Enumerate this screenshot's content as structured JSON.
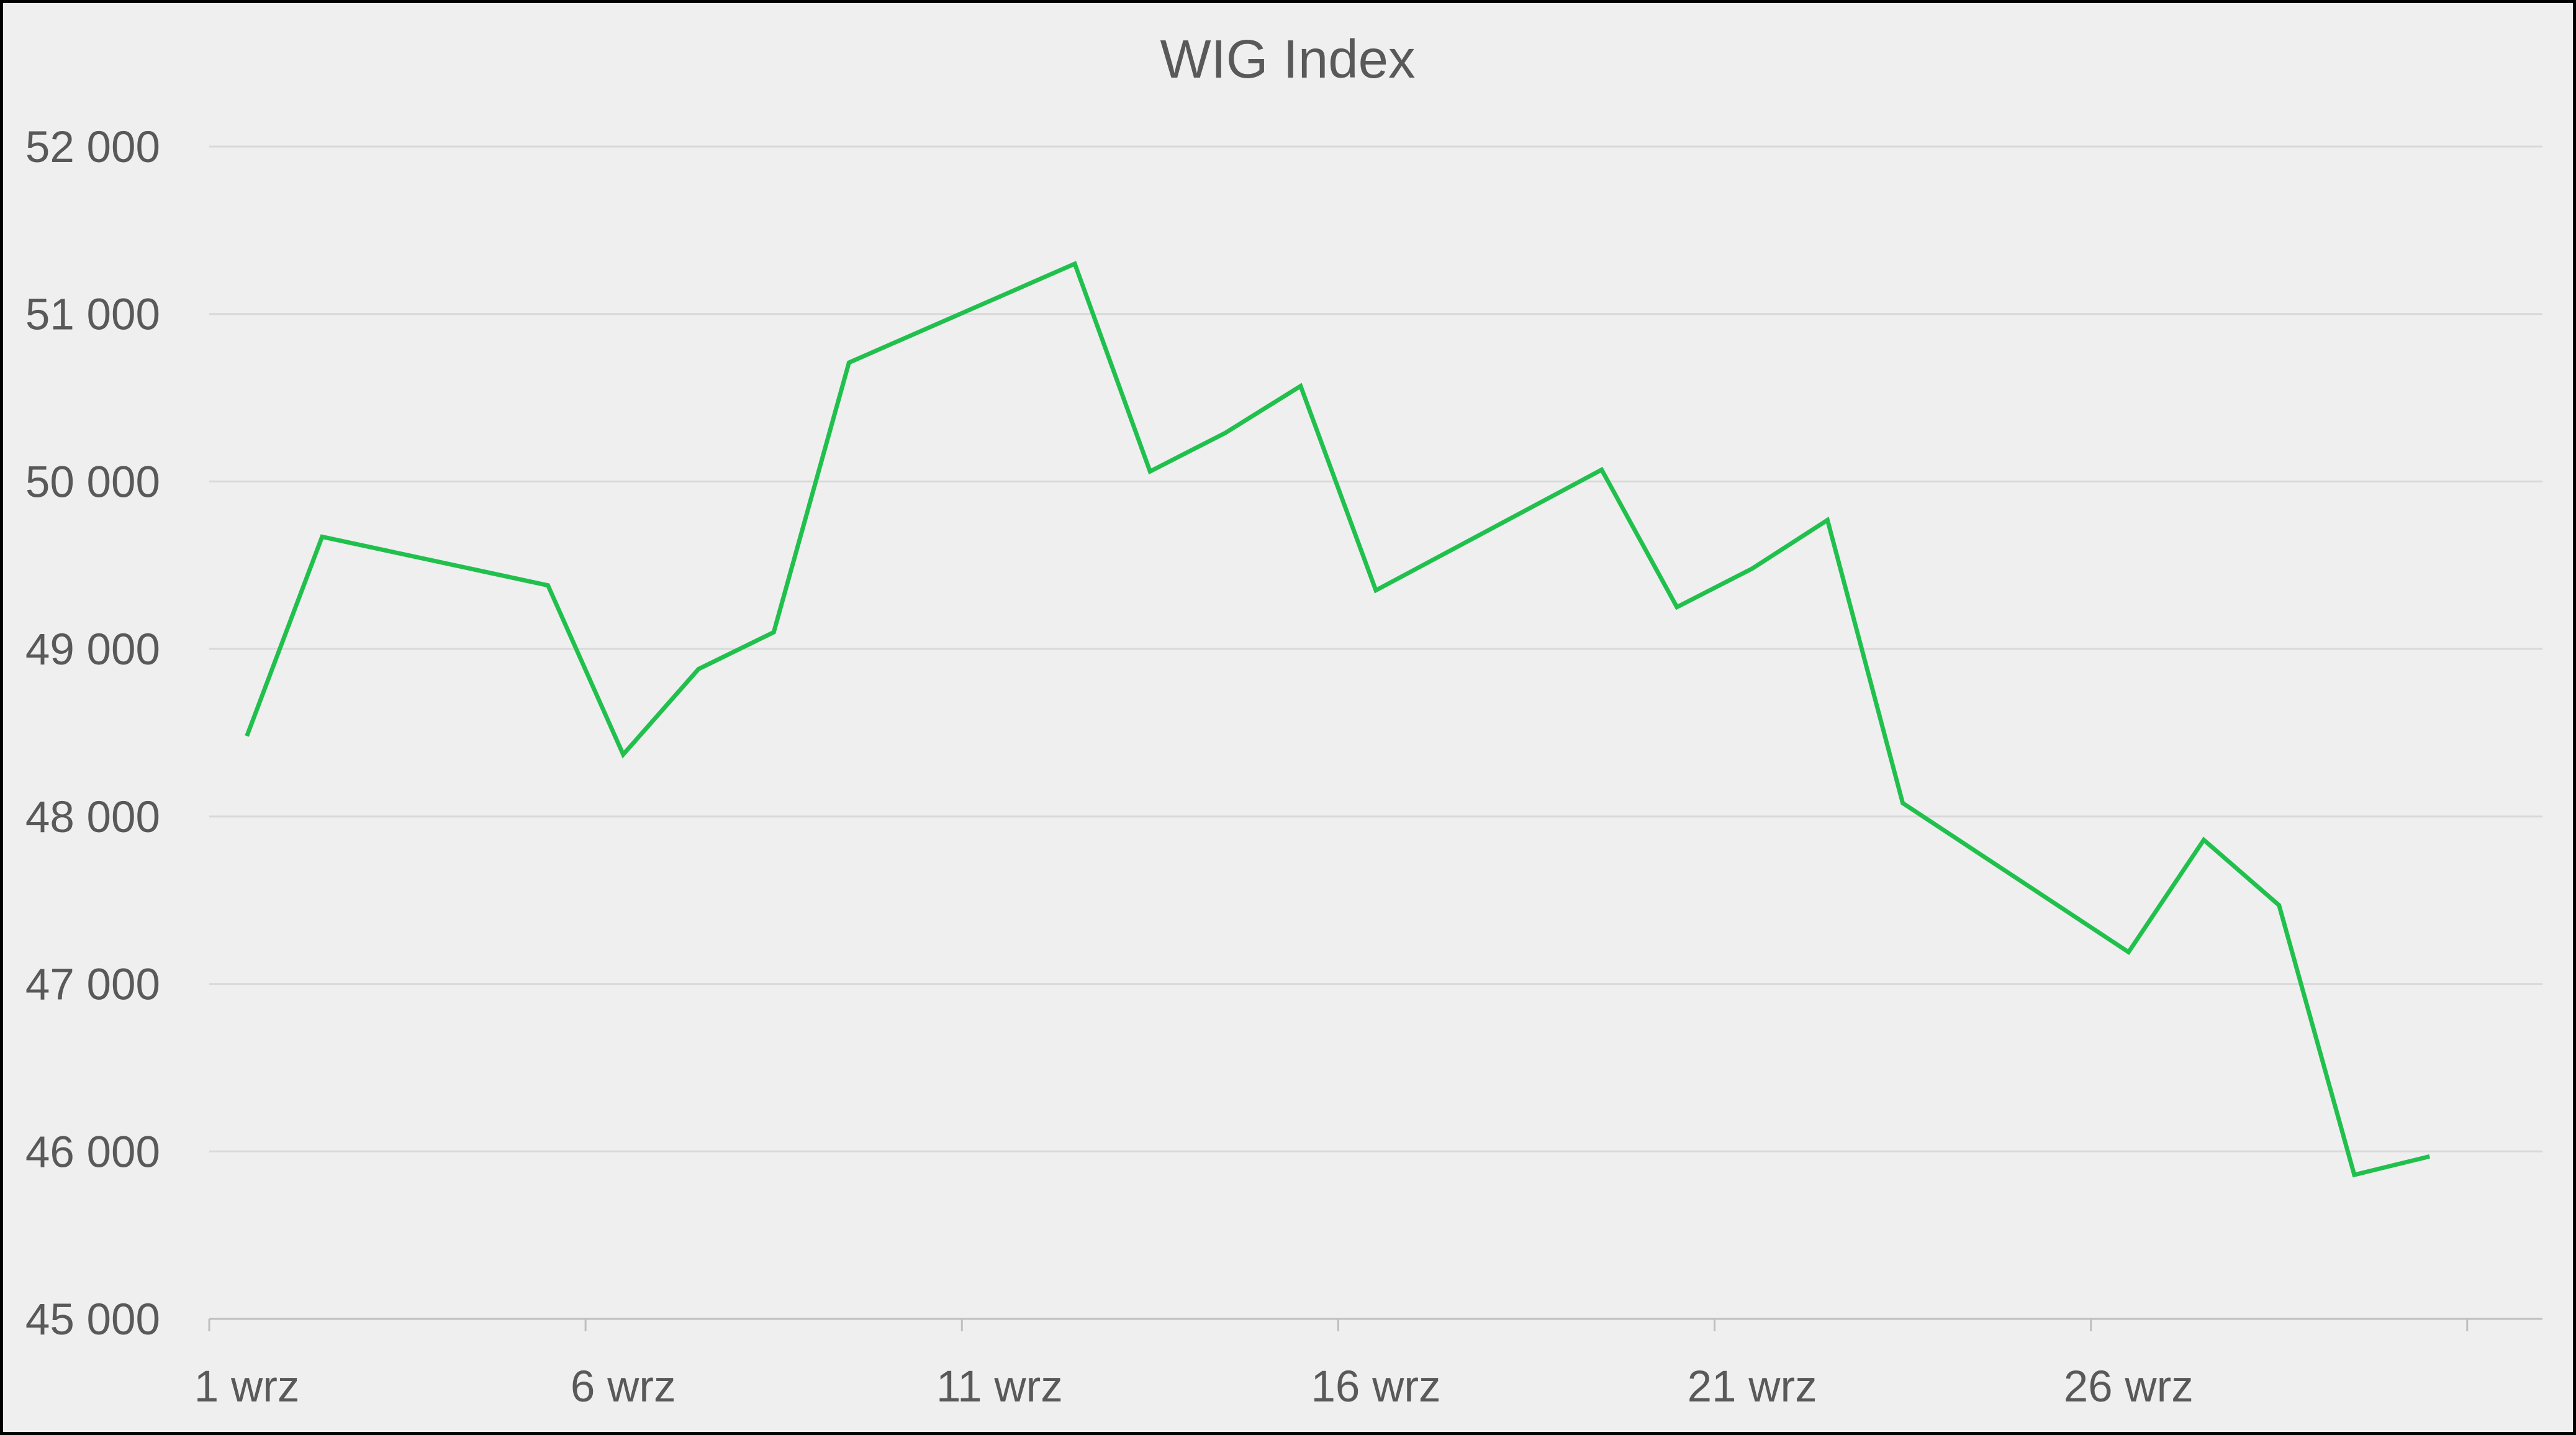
{
  "chart_data": {
    "type": "line",
    "title": "WIG Index",
    "xlabel": "",
    "ylabel": "",
    "x_tick_labels": [
      "1 wrz",
      "6 wrz",
      "11 wrz",
      "16 wrz",
      "21 wrz",
      "26 wrz"
    ],
    "y_tick_labels": [
      "45 000",
      "46 000",
      "47 000",
      "48 000",
      "49 000",
      "50 000",
      "51 000",
      "52 000"
    ],
    "x_range_days": [
      1,
      31
    ],
    "ylim": [
      45000,
      52000
    ],
    "grid": "horizontal",
    "legend": "none",
    "series": [
      {
        "color": "#21c04d",
        "points": [
          {
            "day": 1,
            "value": 48480
          },
          {
            "day": 2,
            "value": 49670
          },
          {
            "day": 5,
            "value": 49380
          },
          {
            "day": 6,
            "value": 48370
          },
          {
            "day": 7,
            "value": 48880
          },
          {
            "day": 8,
            "value": 49100
          },
          {
            "day": 9,
            "value": 50710
          },
          {
            "day": 12,
            "value": 51300
          },
          {
            "day": 13,
            "value": 50060
          },
          {
            "day": 14,
            "value": 50290
          },
          {
            "day": 15,
            "value": 50570
          },
          {
            "day": 16,
            "value": 49350
          },
          {
            "day": 19,
            "value": 50070
          },
          {
            "day": 20,
            "value": 49250
          },
          {
            "day": 21,
            "value": 49480
          },
          {
            "day": 22,
            "value": 49770
          },
          {
            "day": 23,
            "value": 48080
          },
          {
            "day": 26,
            "value": 47190
          },
          {
            "day": 27,
            "value": 47860
          },
          {
            "day": 28,
            "value": 47470
          },
          {
            "day": 29,
            "value": 45860
          },
          {
            "day": 30,
            "value": 45970
          }
        ]
      }
    ]
  },
  "colors": {
    "background": "#efefef",
    "gridline": "#d9d9d9",
    "axis": "#bfbfbf",
    "text": "#595959",
    "line": "#21c04d"
  }
}
